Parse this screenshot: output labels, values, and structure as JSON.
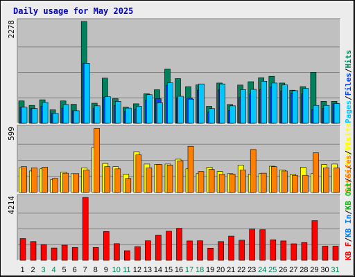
{
  "title": "Daily usage for May 2025",
  "colors": {
    "background": "#ececec",
    "plot": "#c0c0c0",
    "title": "#0000c0",
    "hits": "#00805c",
    "files": "#0040ff",
    "pages": "#00c8ff",
    "visits": "#ffff00",
    "sites": "#ff8000",
    "kbin": "#0080ff",
    "kbout": "#00c000",
    "kbf": "#ff0000",
    "weekend": "#00805c"
  },
  "chart_data": [
    {
      "type": "bar",
      "name": "hits-files-pages",
      "ymax_label": "2278",
      "ylim": [
        0,
        2278
      ],
      "legend": [
        {
          "label": "Pages",
          "key": "pages"
        },
        {
          "label": "/",
          "key": "sep"
        },
        {
          "label": "Files",
          "key": "files"
        },
        {
          "label": "/",
          "key": "sep"
        },
        {
          "label": "Hits",
          "key": "hits"
        }
      ],
      "categories": [
        "1",
        "2",
        "3",
        "4",
        "5",
        "6",
        "7",
        "8",
        "9",
        "10",
        "11",
        "12",
        "13",
        "14",
        "15",
        "16",
        "17",
        "18",
        "19",
        "20",
        "21",
        "22",
        "23",
        "24",
        "25",
        "26",
        "27",
        "28",
        "29",
        "30",
        "31"
      ],
      "series": [
        {
          "name": "Hits",
          "values": [
            500,
            400,
            525,
            300,
            500,
            425,
            2278,
            450,
            1010,
            550,
            360,
            435,
            660,
            750,
            1210,
            1000,
            820,
            860,
            380,
            900,
            420,
            855,
            930,
            1020,
            1050,
            900,
            740,
            820,
            1140,
            490,
            490
          ]
        },
        {
          "name": "Files",
          "values": [
            360,
            330,
            380,
            220,
            340,
            280,
            1340,
            330,
            580,
            395,
            265,
            315,
            520,
            550,
            850,
            570,
            565,
            740,
            250,
            745,
            290,
            580,
            660,
            760,
            810,
            720,
            675,
            660,
            310,
            330,
            440
          ]
        },
        {
          "name": "Pages",
          "values": [
            360,
            330,
            465,
            220,
            420,
            280,
            1340,
            390,
            595,
            490,
            340,
            380,
            640,
            460,
            905,
            605,
            540,
            880,
            330,
            880,
            390,
            750,
            760,
            940,
            900,
            860,
            730,
            780,
            400,
            400,
            440
          ]
        }
      ]
    },
    {
      "type": "bar",
      "name": "visits-sites",
      "ymax_label": "599",
      "ylim": [
        0,
        599
      ],
      "legend": [
        {
          "label": "Sites",
          "key": "sites"
        },
        {
          "label": "/",
          "key": "sep"
        },
        {
          "label": "Visits",
          "key": "visits"
        }
      ],
      "categories": [
        "1",
        "2",
        "3",
        "4",
        "5",
        "6",
        "7",
        "8",
        "9",
        "10",
        "11",
        "12",
        "13",
        "14",
        "15",
        "16",
        "17",
        "18",
        "19",
        "20",
        "21",
        "22",
        "23",
        "24",
        "25",
        "26",
        "27",
        "28",
        "29",
        "30",
        "31"
      ],
      "series": [
        {
          "name": "Visits",
          "values": [
            230,
            200,
            220,
            120,
            190,
            175,
            230,
            420,
            270,
            240,
            170,
            380,
            265,
            260,
            265,
            310,
            220,
            175,
            235,
            195,
            175,
            255,
            170,
            175,
            245,
            210,
            170,
            235,
            175,
            260,
            265
          ]
        },
        {
          "name": "Sites",
          "values": [
            240,
            230,
            235,
            130,
            180,
            175,
            210,
            595,
            240,
            220,
            130,
            350,
            230,
            260,
            255,
            295,
            430,
            195,
            215,
            170,
            170,
            210,
            400,
            180,
            240,
            200,
            160,
            160,
            370,
            230,
            230
          ]
        }
      ]
    },
    {
      "type": "bar",
      "name": "kbf",
      "ymax_label": "4214",
      "ylim": [
        0,
        4214
      ],
      "legend": [
        {
          "label": "KB F",
          "key": "kbf"
        },
        {
          "label": "/",
          "key": "sep"
        },
        {
          "label": "KB In",
          "key": "kbin"
        },
        {
          "label": "/",
          "key": "sep"
        },
        {
          "label": "KB Out",
          "key": "kbout"
        },
        {
          "label": "/",
          "key": "sep"
        },
        {
          "label": "Sites",
          "key": "sites"
        },
        {
          "label": "/",
          "key": "sep"
        },
        {
          "label": "Visits",
          "key": "visits"
        }
      ],
      "categories": [
        "1",
        "2",
        "3",
        "4",
        "5",
        "6",
        "7",
        "8",
        "9",
        "10",
        "11",
        "12",
        "13",
        "14",
        "15",
        "16",
        "17",
        "18",
        "19",
        "20",
        "21",
        "22",
        "23",
        "24",
        "25",
        "26",
        "27",
        "28",
        "29",
        "30",
        "31"
      ],
      "series": [
        {
          "name": "KB F",
          "values": [
            1460,
            1260,
            1060,
            830,
            1020,
            860,
            4214,
            860,
            1930,
            1120,
            650,
            920,
            1310,
            1690,
            1950,
            2150,
            1300,
            1310,
            820,
            1260,
            1620,
            1350,
            2100,
            2050,
            1380,
            1300,
            1110,
            1200,
            2660,
            950,
            950
          ]
        }
      ]
    }
  ],
  "x_ticks": [
    {
      "label": "1",
      "weekend": false
    },
    {
      "label": "2",
      "weekend": false
    },
    {
      "label": "3",
      "weekend": true
    },
    {
      "label": "4",
      "weekend": true
    },
    {
      "label": "5",
      "weekend": false
    },
    {
      "label": "6",
      "weekend": false
    },
    {
      "label": "7",
      "weekend": false
    },
    {
      "label": "8",
      "weekend": false
    },
    {
      "label": "9",
      "weekend": false
    },
    {
      "label": "10",
      "weekend": true
    },
    {
      "label": "11",
      "weekend": true
    },
    {
      "label": "12",
      "weekend": false
    },
    {
      "label": "13",
      "weekend": false
    },
    {
      "label": "14",
      "weekend": false
    },
    {
      "label": "15",
      "weekend": false
    },
    {
      "label": "16",
      "weekend": false
    },
    {
      "label": "17",
      "weekend": true
    },
    {
      "label": "18",
      "weekend": true
    },
    {
      "label": "19",
      "weekend": false
    },
    {
      "label": "20",
      "weekend": false
    },
    {
      "label": "21",
      "weekend": false
    },
    {
      "label": "22",
      "weekend": false
    },
    {
      "label": "23",
      "weekend": false
    },
    {
      "label": "24",
      "weekend": true
    },
    {
      "label": "25",
      "weekend": true
    },
    {
      "label": "26",
      "weekend": false
    },
    {
      "label": "27",
      "weekend": false
    },
    {
      "label": "28",
      "weekend": false
    },
    {
      "label": "29",
      "weekend": false
    },
    {
      "label": "30",
      "weekend": false
    },
    {
      "label": "31",
      "weekend": true
    }
  ]
}
